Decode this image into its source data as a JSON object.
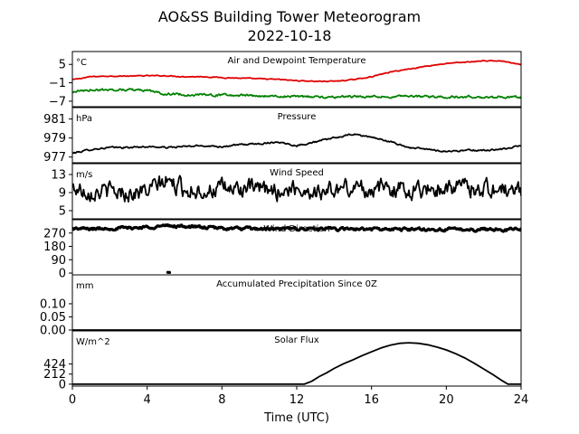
{
  "title": "AO&SS Building Tower Meteorogram",
  "subtitle": "2022-10-18",
  "xlabel": "Time (UTC)",
  "chart_data": [
    {
      "type": "line",
      "title": "Air and Dewpoint Temperature",
      "unit_label": "°C",
      "ylim": [
        -8.8,
        9.2
      ],
      "yticks": [
        {
          "v": 5,
          "label": "5"
        },
        {
          "v": -1,
          "label": "−1"
        },
        {
          "v": -7,
          "label": "−7"
        }
      ],
      "x": [
        0,
        1,
        2,
        3,
        4,
        5,
        6,
        7,
        8,
        9,
        10,
        11,
        12,
        13,
        14,
        15,
        16,
        17,
        18,
        19,
        20,
        21,
        22,
        23,
        24
      ],
      "series": [
        {
          "color": "#e00000",
          "noise": 0.12,
          "values": [
            0,
            1,
            1.2,
            1.2,
            1.3,
            1.3,
            1.0,
            1.0,
            0.7,
            0.5,
            0.3,
            0.1,
            -0.3,
            -0.5,
            -0.5,
            0.0,
            1.0,
            2.5,
            3.5,
            4.5,
            5.3,
            5.7,
            6.2,
            6.1,
            4.8
          ]
        },
        {
          "color": "#008000",
          "noise": 0.3,
          "values": [
            -4.0,
            -3.3,
            -3.3,
            -3.2,
            -3.6,
            -4.6,
            -4.9,
            -4.9,
            -5.0,
            -5.1,
            -5.3,
            -5.4,
            -5.5,
            -5.6,
            -5.6,
            -5.5,
            -5.5,
            -5.6,
            -5.5,
            -5.5,
            -5.6,
            -5.6,
            -5.7,
            -5.7,
            -5.6
          ]
        }
      ]
    },
    {
      "type": "line",
      "title": "Pressure",
      "unit_label": "hPa",
      "ylim": [
        976.4,
        982.2
      ],
      "yticks": [
        {
          "v": 981,
          "label": "981"
        },
        {
          "v": 979,
          "label": "979"
        },
        {
          "v": 977,
          "label": "977"
        }
      ],
      "x": [
        0,
        1,
        2,
        3,
        4,
        5,
        6,
        7,
        8,
        9,
        10,
        11,
        12,
        13,
        14,
        15,
        16,
        17,
        18,
        19,
        20,
        21,
        22,
        23,
        24
      ],
      "series": [
        {
          "color": "#000000",
          "noise": 0.07,
          "values": [
            977.4,
            977.8,
            978.0,
            978.0,
            978.1,
            978.0,
            978.1,
            978.2,
            978.1,
            978.3,
            978.4,
            978.6,
            978.2,
            978.6,
            979.0,
            979.4,
            979.1,
            978.6,
            978.0,
            977.8,
            977.6,
            977.7,
            977.7,
            977.8,
            978.2
          ]
        }
      ]
    },
    {
      "type": "line",
      "title": "Wind Speed",
      "unit_label": "m/s",
      "ylim": [
        3.2,
        15.4
      ],
      "yticks": [
        {
          "v": 13,
          "label": "13"
        },
        {
          "v": 9,
          "label": "9"
        },
        {
          "v": 5,
          "label": "5"
        }
      ],
      "x": [
        0,
        1,
        2,
        3,
        4,
        5,
        6,
        7,
        8,
        9,
        10,
        11,
        12,
        13,
        14,
        15,
        16,
        17,
        18,
        19,
        20,
        21,
        22,
        23,
        24
      ],
      "series": [
        {
          "color": "#000000",
          "noise": 1.6,
          "values": [
            10,
            9.5,
            9.2,
            9.0,
            9.3,
            11.5,
            9.8,
            9.6,
            9.7,
            10.0,
            9.5,
            9.4,
            10.0,
            9.2,
            9.5,
            10.2,
            9.8,
            10.0,
            9.6,
            9.8,
            10.3,
            10.2,
            10.0,
            9.6,
            9.2
          ]
        }
      ]
    },
    {
      "type": "scatter",
      "title": "Wind Direction",
      "unit_label": "",
      "ylim": [
        -12,
        360
      ],
      "yticks": [
        {
          "v": 270,
          "label": "270"
        },
        {
          "v": 180,
          "label": "180"
        },
        {
          "v": 90,
          "label": "90"
        },
        {
          "v": 0,
          "label": "0"
        }
      ],
      "x": [
        0,
        1,
        2,
        3,
        4,
        5,
        6,
        7,
        8,
        9,
        10,
        11,
        12,
        13,
        14,
        15,
        16,
        17,
        18,
        19,
        20,
        21,
        22,
        23,
        24
      ],
      "series": [
        {
          "color": "#000000",
          "noise": 8,
          "values": [
            300,
            298,
            302,
            304,
            310,
            318,
            316,
            308,
            302,
            300,
            298,
            296,
            300,
            298,
            296,
            298,
            296,
            294,
            296,
            294,
            295,
            293,
            296,
            294,
            295
          ]
        }
      ],
      "outliers": [
        {
          "x": 5.1,
          "y": 5
        },
        {
          "x": 5.15,
          "y": 5
        },
        {
          "x": 5.2,
          "y": 4
        }
      ]
    },
    {
      "type": "line",
      "title": "Accumulated Precipitation Since 0Z",
      "unit_label": "mm",
      "ylim": [
        0,
        0.21
      ],
      "yticks": [
        {
          "v": 0.1,
          "label": "0.10"
        },
        {
          "v": 0.05,
          "label": "0.05"
        },
        {
          "v": 0.0,
          "label": "0.00"
        }
      ],
      "x": [
        0,
        24
      ],
      "series": [
        {
          "color": "#000000",
          "noise": 0,
          "values": [
            0,
            0
          ]
        }
      ]
    },
    {
      "type": "line",
      "title": "Solar Flux",
      "unit_label": "W/m^2",
      "ylim": [
        -40,
        1120
      ],
      "yticks": [
        {
          "v": 424,
          "label": "424"
        },
        {
          "v": 212,
          "label": "212"
        },
        {
          "v": 0,
          "label": "0"
        }
      ],
      "x": [
        0,
        12,
        12.4,
        12.8,
        13.2,
        13.6,
        14,
        14.5,
        15,
        15.5,
        16,
        16.5,
        17,
        17.5,
        18,
        18.5,
        19,
        19.5,
        20,
        20.5,
        21,
        21.5,
        22,
        22.5,
        23,
        23.3,
        24
      ],
      "series": [
        {
          "color": "#000000",
          "noise": 0,
          "values": [
            0,
            0,
            0,
            60,
            160,
            240,
            330,
            430,
            510,
            600,
            680,
            760,
            820,
            860,
            870,
            860,
            830,
            780,
            720,
            640,
            550,
            440,
            320,
            200,
            70,
            0,
            0
          ]
        }
      ]
    }
  ],
  "xaxis": {
    "xlim": [
      0,
      24
    ],
    "ticks": [
      {
        "v": 0,
        "label": "0"
      },
      {
        "v": 4,
        "label": "4"
      },
      {
        "v": 8,
        "label": "8"
      },
      {
        "v": 12,
        "label": "12"
      },
      {
        "v": 16,
        "label": "16"
      },
      {
        "v": 20,
        "label": "20"
      },
      {
        "v": 24,
        "label": "24"
      }
    ]
  }
}
